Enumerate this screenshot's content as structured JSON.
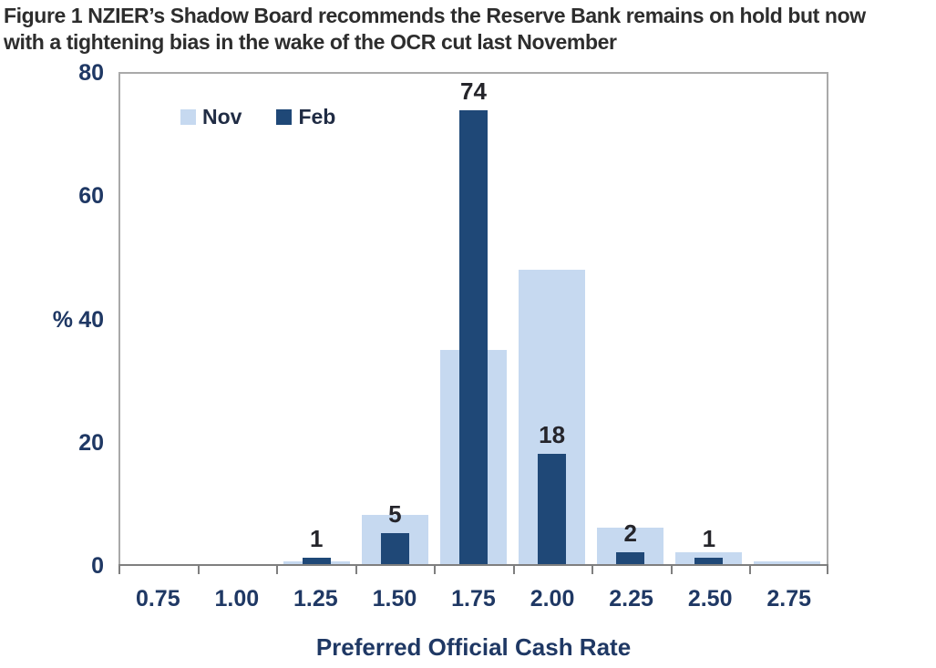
{
  "title": {
    "line1": "Figure 1 NZIER’s Shadow Board recommends the Reserve Bank remains on hold but now",
    "line2": "with a tightening bias in the wake of the OCR cut last November"
  },
  "chart_data": {
    "type": "bar",
    "title": "Figure 1 NZIER’s Shadow Board recommends the Reserve Bank remains on hold but now with a tightening bias in the wake of the OCR cut last November",
    "categories": [
      "0.75",
      "1.00",
      "1.25",
      "1.50",
      "1.75",
      "2.00",
      "2.25",
      "2.50",
      "2.75"
    ],
    "series": [
      {
        "name": "Nov",
        "color": "#c6d9f0",
        "values": [
          0,
          0,
          0.5,
          8,
          35,
          48,
          6,
          2,
          0.5
        ]
      },
      {
        "name": "Feb",
        "color": "#1f4877",
        "values": [
          0,
          0,
          1,
          5,
          74,
          18,
          2,
          1,
          0
        ]
      }
    ],
    "data_labels_series": "Feb",
    "data_labels": [
      "",
      "",
      "1",
      "5",
      "74",
      "18",
      "2",
      "1",
      ""
    ],
    "xlabel": "Preferred Official Cash Rate",
    "ylabel": "%",
    "yticks": [
      0,
      20,
      40,
      60,
      80
    ],
    "ylim": [
      0,
      80
    ],
    "grid": false,
    "legend_position": "top-left-inside"
  },
  "colors": {
    "nov_bar": "#c6d9f0",
    "feb_bar": "#1f4877",
    "axis_text": "#1f3864",
    "data_label_text": "#25252b",
    "title_text": "#2d2d2d",
    "plot_border": "#a9a9a9",
    "axis_line": "#7f7f7f"
  }
}
